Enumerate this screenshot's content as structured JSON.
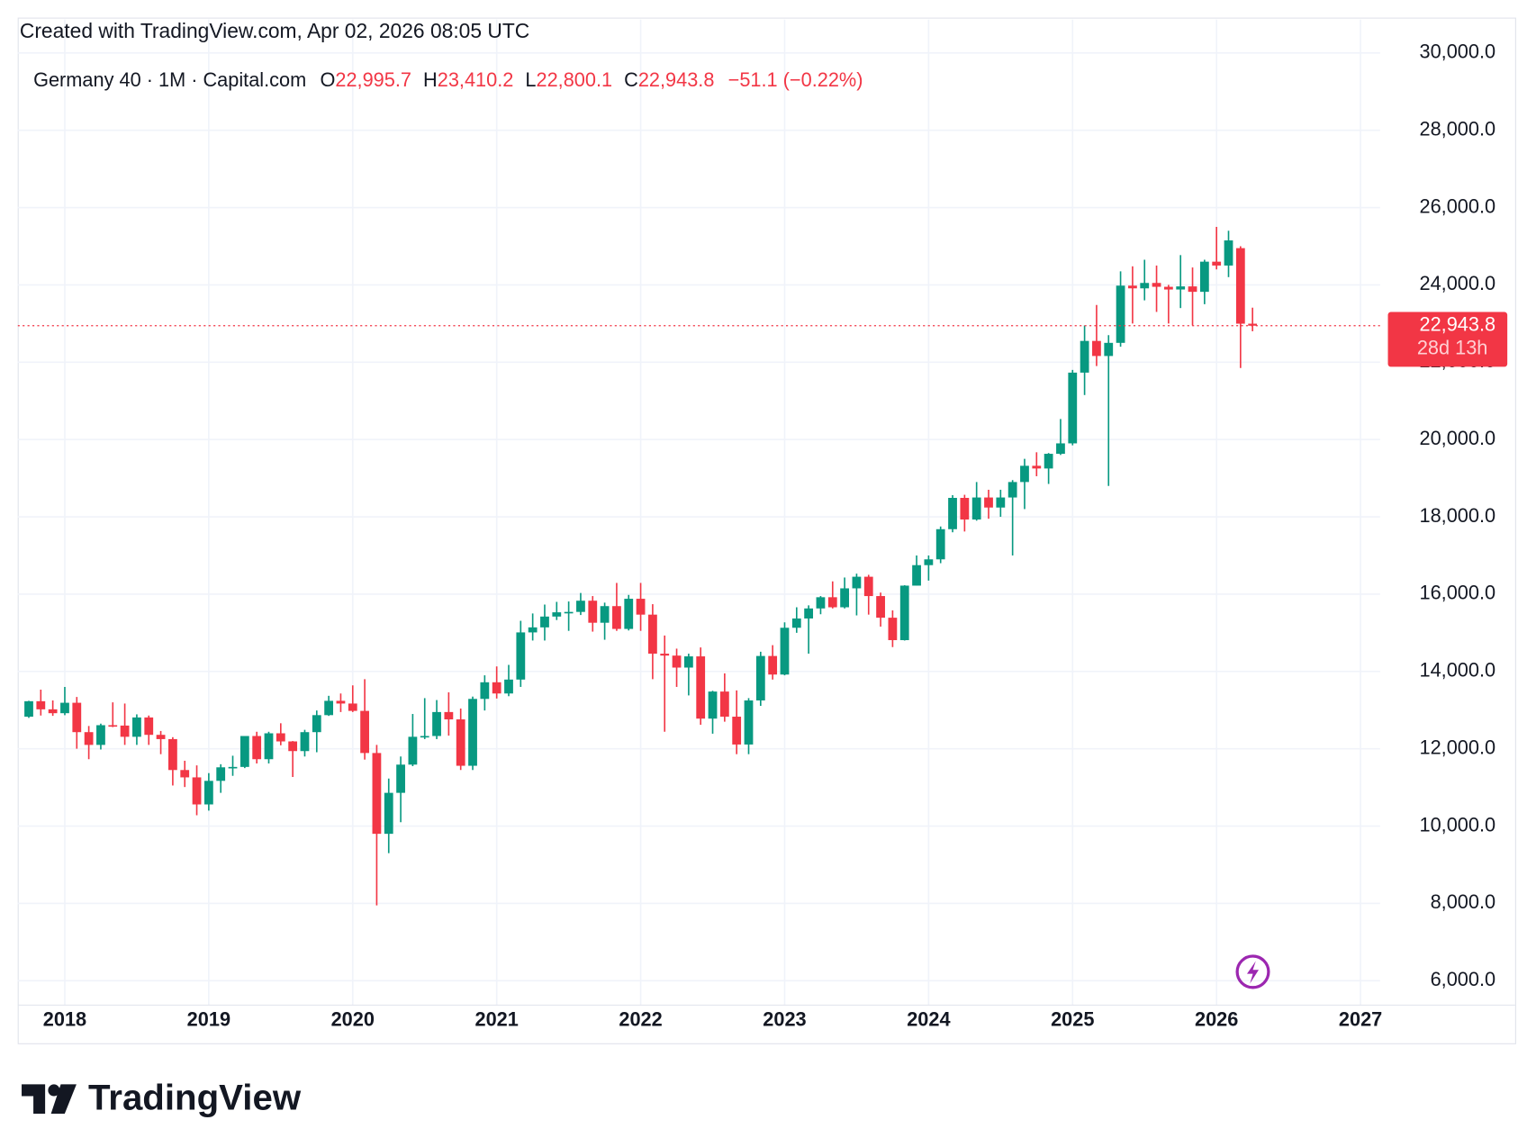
{
  "header": {
    "created": "Created with TradingView.com, Apr 02, 2026 08:05 UTC",
    "symbol": "Germany 40 · 1M · Capital.com",
    "ohlc": [
      {
        "key": "O",
        "value": "22,995.7"
      },
      {
        "key": "H",
        "value": "23,410.2"
      },
      {
        "key": "L",
        "value": "22,800.1"
      },
      {
        "key": "C",
        "value": "22,943.8"
      }
    ],
    "change": "−51.1 (−0.22%)"
  },
  "chart_data": {
    "type": "candlestick",
    "x": [
      "2017-10",
      "2017-11",
      "2017-12",
      "2018-01",
      "2018-02",
      "2018-03",
      "2018-04",
      "2018-05",
      "2018-06",
      "2018-07",
      "2018-08",
      "2018-09",
      "2018-10",
      "2018-11",
      "2018-12",
      "2019-01",
      "2019-02",
      "2019-03",
      "2019-04",
      "2019-05",
      "2019-06",
      "2019-07",
      "2019-08",
      "2019-09",
      "2019-10",
      "2019-11",
      "2019-12",
      "2020-01",
      "2020-02",
      "2020-03",
      "2020-04",
      "2020-05",
      "2020-06",
      "2020-07",
      "2020-08",
      "2020-09",
      "2020-10",
      "2020-11",
      "2020-12",
      "2021-01",
      "2021-02",
      "2021-03",
      "2021-04",
      "2021-05",
      "2021-06",
      "2021-07",
      "2021-08",
      "2021-09",
      "2021-10",
      "2021-11",
      "2021-12",
      "2022-01",
      "2022-02",
      "2022-03",
      "2022-04",
      "2022-05",
      "2022-06",
      "2022-07",
      "2022-08",
      "2022-09",
      "2022-10",
      "2022-11",
      "2022-12",
      "2023-01",
      "2023-02",
      "2023-03",
      "2023-04",
      "2023-05",
      "2023-06",
      "2023-07",
      "2023-08",
      "2023-09",
      "2023-10",
      "2023-11",
      "2023-12",
      "2024-01",
      "2024-02",
      "2024-03",
      "2024-04",
      "2024-05",
      "2024-06",
      "2024-07",
      "2024-08",
      "2024-09",
      "2024-10",
      "2024-11",
      "2024-12",
      "2025-01",
      "2025-02",
      "2025-03",
      "2025-04",
      "2025-05",
      "2025-06",
      "2025-07",
      "2025-08",
      "2025-09",
      "2025-10",
      "2025-11",
      "2025-12",
      "2026-01",
      "2026-02",
      "2026-03",
      "2026-04"
    ],
    "open": [
      12830,
      13230,
      13020,
      12920,
      13190,
      12430,
      12100,
      12610,
      12600,
      12310,
      12810,
      12360,
      12250,
      11450,
      11260,
      10560,
      11170,
      11520,
      11530,
      12330,
      11730,
      12400,
      12190,
      11940,
      12430,
      12870,
      13240,
      13170,
      12980,
      11890,
      9800,
      10860,
      11590,
      12310,
      12330,
      12950,
      12760,
      11560,
      13290,
      13720,
      13430,
      13790,
      15010,
      15140,
      15420,
      15530,
      15540,
      15830,
      15260,
      15690,
      15100,
      15880,
      15470,
      14460,
      14410,
      14100,
      14390,
      12780,
      13480,
      12830,
      12110,
      13250,
      14400,
      13920,
      15130,
      15370,
      15630,
      15920,
      15660,
      16150,
      16450,
      15950,
      15390,
      14810,
      16220,
      16750,
      16900,
      17680,
      18490,
      17930,
      18500,
      18240,
      18500,
      18900,
      19320,
      19250,
      19630,
      19900,
      21730,
      22550,
      22160,
      22500,
      23980,
      23910,
      24050,
      23950,
      23880,
      23960,
      23820,
      24600,
      24500,
      24950,
      22995.7
    ],
    "high": [
      13240,
      13530,
      13250,
      13600,
      13340,
      12590,
      12650,
      13200,
      13170,
      12890,
      12860,
      12460,
      12300,
      11690,
      11570,
      11370,
      11600,
      11820,
      12330,
      12440,
      12440,
      12660,
      12200,
      12490,
      12990,
      13370,
      13430,
      13640,
      13800,
      12100,
      11230,
      11800,
      12900,
      13310,
      13260,
      13460,
      13040,
      13350,
      13900,
      14130,
      14170,
      15310,
      15500,
      15730,
      15800,
      15810,
      16030,
      15950,
      15780,
      16290,
      15980,
      16290,
      15740,
      14930,
      14590,
      14460,
      14620,
      13500,
      13950,
      13510,
      13310,
      14510,
      14680,
      15270,
      15660,
      15710,
      15950,
      16330,
      16430,
      16530,
      16500,
      16040,
      15580,
      16230,
      17000,
      17000,
      17750,
      18560,
      18570,
      18900,
      18700,
      18700,
      18950,
      19500,
      19670,
      19650,
      20530,
      21800,
      22950,
      23480,
      22700,
      24350,
      24480,
      24650,
      24500,
      24000,
      24770,
      24450,
      24650,
      25500,
      25400,
      25000,
      23410.2
    ],
    "low": [
      12800,
      12860,
      12850,
      12870,
      12000,
      11730,
      11980,
      12560,
      12100,
      12100,
      12100,
      11860,
      11050,
      11010,
      10280,
      10400,
      10860,
      11300,
      11500,
      11620,
      11620,
      12090,
      11270,
      11800,
      11910,
      12850,
      12950,
      12950,
      11720,
      7950,
      9300,
      10100,
      11550,
      12250,
      12250,
      12340,
      11450,
      11450,
      12990,
      13300,
      13360,
      13600,
      14800,
      14800,
      15330,
      15050,
      15460,
      15030,
      14820,
      15050,
      15060,
      15050,
      13800,
      12440,
      13600,
      13380,
      12620,
      12390,
      12700,
      11860,
      11860,
      13110,
      13790,
      13900,
      15000,
      14460,
      15480,
      15630,
      15630,
      15450,
      15470,
      15160,
      14630,
      14800,
      16220,
      16350,
      16800,
      17600,
      17620,
      17900,
      17950,
      18000,
      17000,
      18200,
      19050,
      18850,
      19600,
      19850,
      21150,
      21900,
      18800,
      22400,
      23000,
      23600,
      23300,
      23000,
      23400,
      22950,
      23500,
      24400,
      24200,
      21850,
      22800.1
    ],
    "close": [
      13230,
      13020,
      12920,
      13190,
      12430,
      12100,
      12610,
      12600,
      12310,
      12810,
      12360,
      12250,
      11450,
      11260,
      10560,
      11170,
      11520,
      11530,
      12330,
      11730,
      12400,
      12190,
      11940,
      12430,
      12870,
      13240,
      13170,
      12980,
      11890,
      9800,
      10860,
      11590,
      12310,
      12330,
      12950,
      12760,
      11560,
      13290,
      13720,
      13430,
      13790,
      15010,
      15140,
      15420,
      15530,
      15540,
      15830,
      15260,
      15690,
      15100,
      15880,
      15470,
      14460,
      14410,
      14100,
      14390,
      12780,
      13480,
      12830,
      12110,
      13250,
      14400,
      13920,
      15130,
      15370,
      15630,
      15920,
      15660,
      16150,
      16450,
      15950,
      15390,
      14810,
      16220,
      16750,
      16900,
      17680,
      18490,
      17930,
      18500,
      18240,
      18500,
      18900,
      19320,
      19250,
      19630,
      19900,
      21730,
      22550,
      22160,
      22500,
      23980,
      23910,
      24050,
      23950,
      23880,
      23960,
      23820,
      24600,
      24500,
      25150,
      22995.7,
      22943.8
    ],
    "up_color": "#089981",
    "down_color": "#f23645",
    "xlim": [
      2017.673,
      2027.136
    ],
    "xticks": [
      2018,
      2019,
      2020,
      2021,
      2022,
      2023,
      2024,
      2025,
      2026,
      2027
    ],
    "ylim": [
      5420,
      30660
    ],
    "yticks": [
      {
        "value": 6000,
        "label": "6,000.0"
      },
      {
        "value": 8000,
        "label": "8,000.0"
      },
      {
        "value": 10000,
        "label": "10,000.0"
      },
      {
        "value": 12000,
        "label": "12,000.0"
      },
      {
        "value": 14000,
        "label": "14,000.0"
      },
      {
        "value": 16000,
        "label": "16,000.0"
      },
      {
        "value": 18000,
        "label": "18,000.0"
      },
      {
        "value": 20000,
        "label": "20,000.0"
      },
      {
        "value": 22000,
        "label": "22,000.0"
      },
      {
        "value": 24000,
        "label": "24,000.0"
      },
      {
        "value": 26000,
        "label": "26,000.0"
      },
      {
        "value": 28000,
        "label": "28,000.0"
      },
      {
        "value": 30000,
        "label": "30,000.0"
      }
    ],
    "grid": true,
    "last_price_label": "22,943.8",
    "countdown": "28d 13h"
  },
  "footer": {
    "brand": "TradingView"
  }
}
